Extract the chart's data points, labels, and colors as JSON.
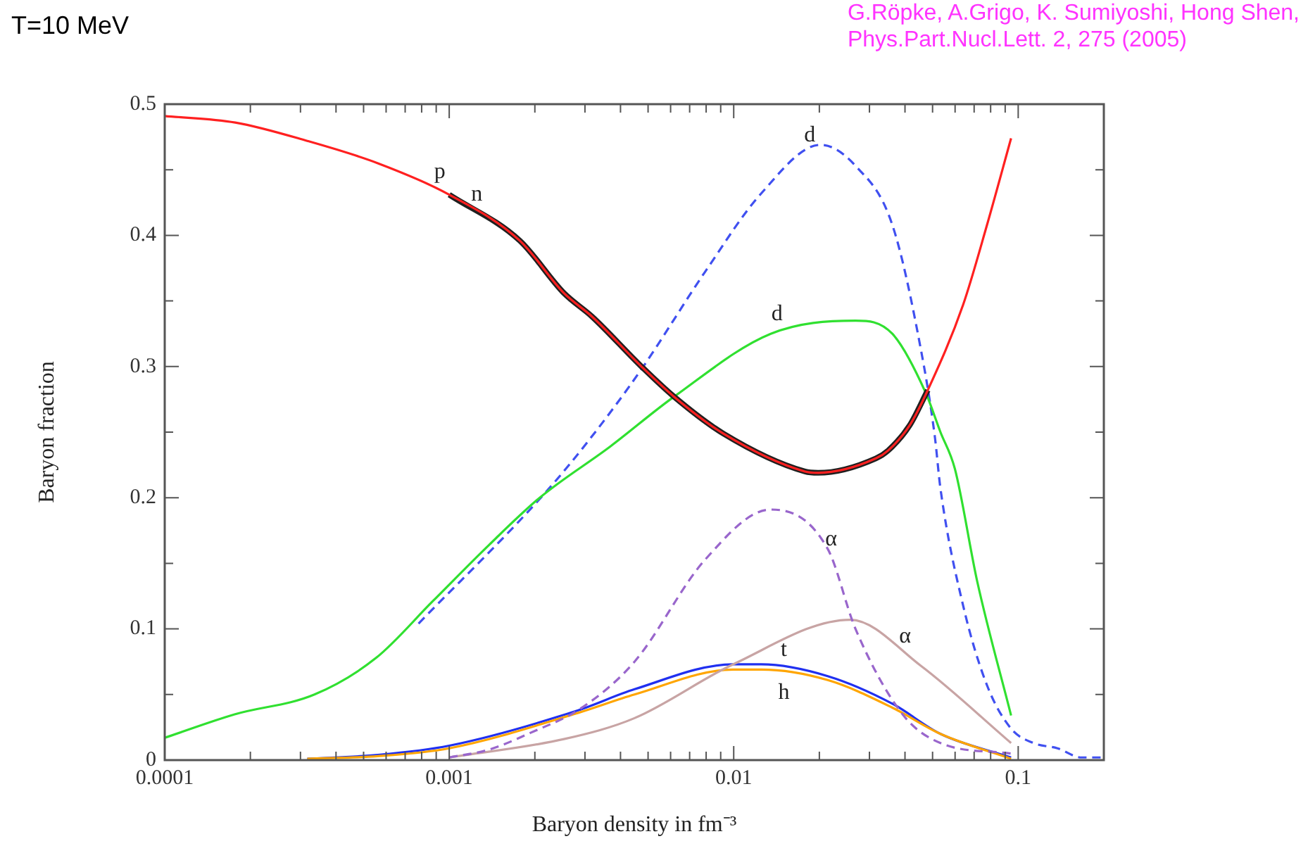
{
  "chart_data": {
    "type": "line",
    "title": "T=10 MeV",
    "xlabel": "Baryon density in fm⁻³",
    "ylabel": "Baryon fraction",
    "log": "x",
    "marker": "none",
    "grid": false,
    "legend": false,
    "xlim": [
      0.0001,
      0.2
    ],
    "ylim": [
      0,
      0.5
    ],
    "xticks": [
      0.0001,
      {
        "value": 0.0002,
        "label": null
      },
      {
        "value": 0.0003,
        "label": null
      },
      {
        "value": 0.0004,
        "label": null
      },
      {
        "value": 0.0005,
        "label": null
      },
      {
        "value": 0.0006,
        "label": null
      },
      {
        "value": 0.0007,
        "label": null
      },
      {
        "value": 0.0008,
        "label": null
      },
      {
        "value": 0.0009,
        "label": null
      },
      0.001,
      {
        "value": 0.002,
        "label": null
      },
      {
        "value": 0.003,
        "label": null
      },
      {
        "value": 0.004,
        "label": null
      },
      {
        "value": 0.005,
        "label": null
      },
      {
        "value": 0.006,
        "label": null
      },
      {
        "value": 0.007,
        "label": null
      },
      {
        "value": 0.008,
        "label": null
      },
      {
        "value": 0.009,
        "label": null
      },
      0.01,
      {
        "value": 0.02,
        "label": null
      },
      {
        "value": 0.03,
        "label": null
      },
      {
        "value": 0.04,
        "label": null
      },
      {
        "value": 0.05,
        "label": null
      },
      {
        "value": 0.06,
        "label": null
      },
      {
        "value": 0.07,
        "label": null
      },
      {
        "value": 0.08,
        "label": null
      },
      {
        "value": 0.09,
        "label": null
      },
      0.1,
      {
        "value": 0.2,
        "label": null
      }
    ],
    "yticks": [
      0,
      {
        "value": 0.05,
        "label": null
      },
      0.1,
      {
        "value": 0.15,
        "label": null
      },
      0.2,
      {
        "value": 0.25,
        "label": null
      },
      0.3,
      {
        "value": 0.35,
        "label": null
      },
      0.4,
      {
        "value": 0.45,
        "label": null
      },
      0.5
    ],
    "series": [
      {
        "color": "#ff2020",
        "line_style": "solid",
        "x": [
          0.0001,
          0.000177,
          0.000317,
          0.000561,
          0.001,
          0.00177,
          0.00253,
          0.00318,
          0.00474,
          0.00617,
          0.00918,
          0.0178,
          0.0198,
          0.0316,
          0.0349,
          0.0415,
          0.0481,
          0.064,
          0.0777,
          0.0944
        ],
        "values": [
          0.491,
          0.486,
          0.472,
          0.455,
          0.431,
          0.396,
          0.356,
          0.338,
          0.3,
          0.277,
          0.249,
          0.22,
          0.219,
          0.23,
          0.236,
          0.255,
          0.282,
          0.347,
          0.408,
          0.474
        ]
      },
      {
        "color": "#202020",
        "line_style": "solid",
        "x": [
          0.001,
          0.00177,
          0.00253,
          0.00318,
          0.00474,
          0.00617,
          0.00918,
          0.0178,
          0.0198,
          0.0316,
          0.0349,
          0.0415,
          0.0481
        ],
        "values": [
          0.431,
          0.396,
          0.356,
          0.338,
          0.3,
          0.277,
          0.249,
          0.22,
          0.219,
          0.23,
          0.236,
          0.255,
          0.282
        ]
      },
      {
        "color": "#30e030",
        "line_style": "solid",
        "x": [
          0.0001,
          0.000177,
          0.000336,
          0.000554,
          0.000874,
          0.00138,
          0.00208,
          0.00368,
          0.00617,
          0.0135,
          0.0268,
          0.0361,
          0.0473,
          0.0533,
          0.0599,
          0.0718,
          0.0944
        ],
        "values": [
          0.017,
          0.035,
          0.05,
          0.078,
          0.121,
          0.164,
          0.2,
          0.239,
          0.277,
          0.325,
          0.335,
          0.325,
          0.28,
          0.25,
          0.222,
          0.136,
          0.034
        ]
      },
      {
        "color": "#4050f0",
        "line_style": "dashed",
        "x": [
          0.00078,
          0.00218,
          0.00318,
          0.00474,
          0.00792,
          0.0125,
          0.0202,
          0.0268,
          0.0361,
          0.0454,
          0.0509,
          0.0533,
          0.064,
          0.0777,
          0.0944,
          0.1132,
          0.1374,
          0.167,
          0.2
        ],
        "values": [
          0.104,
          0.204,
          0.247,
          0.298,
          0.372,
          0.432,
          0.469,
          0.453,
          0.408,
          0.314,
          0.247,
          0.207,
          0.118,
          0.057,
          0.024,
          0.013,
          0.009,
          0.002,
          0.002
        ]
      },
      {
        "color": "#9966cc",
        "line_style": "dashed",
        "x": [
          0.001,
          0.00138,
          0.00194,
          0.00293,
          0.00448,
          0.00795,
          0.0135,
          0.0214,
          0.0268,
          0.0392,
          0.0533,
          0.0944
        ],
        "values": [
          0.002,
          0.008,
          0.021,
          0.04,
          0.075,
          0.153,
          0.191,
          0.161,
          0.1,
          0.035,
          0.013,
          0.005
        ]
      },
      {
        "color": "#c8a4a4",
        "line_style": "solid",
        "x": [
          0.001,
          0.00253,
          0.00448,
          0.00995,
          0.0257,
          0.0454,
          0.0944
        ],
        "values": [
          0.002,
          0.016,
          0.032,
          0.073,
          0.107,
          0.072,
          0.013
        ]
      },
      {
        "color": "#ffa500",
        "line_style": "solid",
        "x": [
          0.000317,
          0.000561,
          0.001,
          0.00284,
          0.00448,
          0.00995,
          0.0125,
          0.0214,
          0.0361,
          0.0533,
          0.0944
        ],
        "values": [
          0.001,
          0.003,
          0.009,
          0.036,
          0.05,
          0.069,
          0.069,
          0.061,
          0.04,
          0.02,
          0.001
        ]
      },
      {
        "color": "#2030f0",
        "line_style": "solid",
        "x": [
          0.000317,
          0.000561,
          0.001,
          0.00284,
          0.00448,
          0.00995,
          0.0125,
          0.0214,
          0.0361,
          0.0533,
          0.0944
        ],
        "values": [
          0.001,
          0.004,
          0.011,
          0.038,
          0.054,
          0.073,
          0.073,
          0.064,
          0.043,
          0.02,
          0.002
        ]
      }
    ],
    "annotations": [
      {
        "text": "p",
        "x": 0.000927,
        "y": 0.434
      },
      {
        "text": "n",
        "x": 0.00125,
        "y": 0.417
      },
      {
        "text": "d",
        "x": 0.0185,
        "y": 0.462
      },
      {
        "text": "d",
        "x": 0.01419,
        "y": 0.326
      },
      {
        "text": "α",
        "x": 0.022,
        "y": 0.154
      },
      {
        "text": "α",
        "x": 0.04,
        "y": 0.08
      },
      {
        "text": "t",
        "x": 0.015,
        "y": 0.07
      },
      {
        "text": "h",
        "x": 0.015,
        "y": 0.066
      },
      "G.Röpke, A.Grigo, K. Sumiyoshi, Hong Shen,",
      "Phys.Part.Nucl.Lett. 2, 275 (2005)"
    ]
  }
}
